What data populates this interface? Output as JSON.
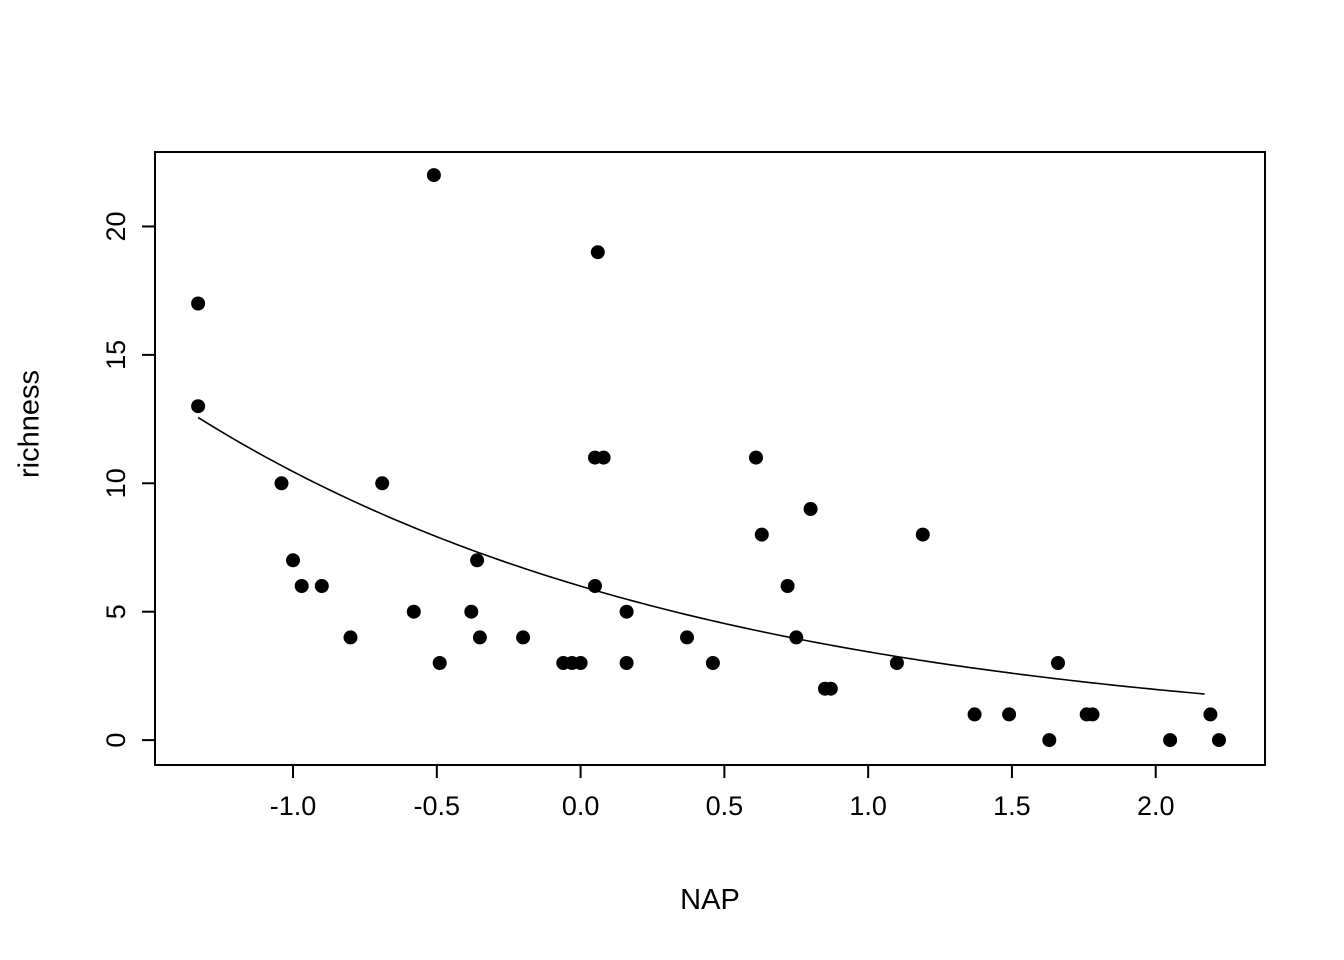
{
  "chart_data": {
    "type": "scatter",
    "title": "",
    "xlabel": "NAP",
    "ylabel": "richness",
    "xlim": [
      -1.48,
      2.38
    ],
    "ylim": [
      -0.97,
      22.9
    ],
    "grid": false,
    "legend": false,
    "point_color": "#000000",
    "line_color": "#000000",
    "x_ticks": {
      "values": [
        -1.0,
        -0.5,
        0.0,
        0.5,
        1.0,
        1.5,
        2.0
      ],
      "labels": [
        "-1.0",
        "-0.5",
        "0.0",
        "0.5",
        "1.0",
        "1.5",
        "2.0"
      ]
    },
    "y_ticks": {
      "values": [
        0,
        5,
        10,
        15,
        20
      ],
      "labels": [
        "0",
        "5",
        "10",
        "15",
        "20"
      ]
    },
    "points": [
      [
        -1.33,
        17
      ],
      [
        -1.33,
        13
      ],
      [
        -0.51,
        22
      ],
      [
        0.06,
        19
      ],
      [
        -1.04,
        10
      ],
      [
        -0.69,
        10
      ],
      [
        0.05,
        11
      ],
      [
        0.08,
        11
      ],
      [
        0.61,
        11
      ],
      [
        0.8,
        9
      ],
      [
        0.63,
        8
      ],
      [
        1.19,
        8
      ],
      [
        -1.0,
        7
      ],
      [
        -0.36,
        7
      ],
      [
        -0.97,
        6
      ],
      [
        -0.9,
        6
      ],
      [
        0.05,
        6
      ],
      [
        0.72,
        6
      ],
      [
        -0.58,
        5
      ],
      [
        -0.38,
        5
      ],
      [
        0.16,
        5
      ],
      [
        -0.8,
        4
      ],
      [
        -0.35,
        4
      ],
      [
        -0.2,
        4
      ],
      [
        0.37,
        4
      ],
      [
        0.75,
        4
      ],
      [
        -0.49,
        3
      ],
      [
        -0.06,
        3
      ],
      [
        -0.03,
        3
      ],
      [
        0.0,
        3
      ],
      [
        0.16,
        3
      ],
      [
        0.46,
        3
      ],
      [
        1.1,
        3
      ],
      [
        1.66,
        3
      ],
      [
        0.85,
        2
      ],
      [
        0.87,
        2
      ],
      [
        1.37,
        1
      ],
      [
        1.49,
        1
      ],
      [
        1.76,
        1
      ],
      [
        1.78,
        1
      ],
      [
        2.19,
        1
      ],
      [
        1.63,
        0
      ],
      [
        2.05,
        0
      ],
      [
        2.22,
        0
      ]
    ],
    "fit_curve": {
      "type": "exponential",
      "formula": "y = exp(1.791 - 0.556 * x)",
      "a": 1.791,
      "b": -0.556,
      "x_start": -1.33,
      "x_end": 2.17
    }
  }
}
